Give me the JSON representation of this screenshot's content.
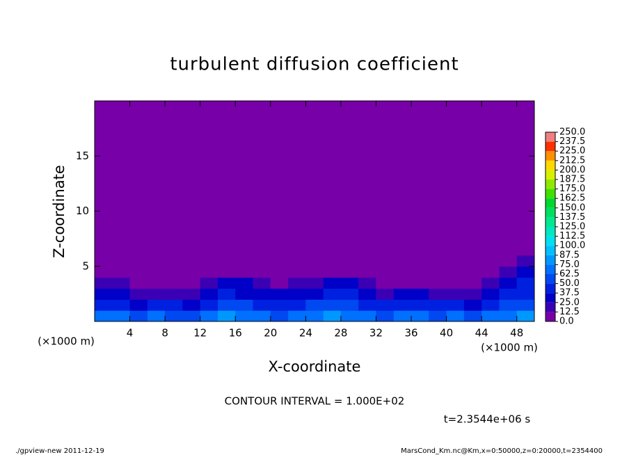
{
  "chart_data": {
    "type": "heatmap",
    "title": "turbulent diffusion coefficient",
    "x_label": "X-coordinate",
    "y_label": "Z-coordinate",
    "x_unit": "(×1000 m)",
    "y_unit": "(×1000 m)",
    "xlim": [
      0,
      50
    ],
    "ylim": [
      0,
      20
    ],
    "xticks": [
      4,
      8,
      12,
      16,
      20,
      24,
      28,
      32,
      36,
      40,
      44,
      48
    ],
    "yticks": [
      5,
      10,
      15
    ],
    "xbins": [
      0,
      2,
      4,
      6,
      8,
      10,
      12,
      14,
      16,
      18,
      20,
      22,
      24,
      26,
      28,
      30,
      32,
      34,
      36,
      38,
      40,
      42,
      44,
      46,
      48,
      50
    ],
    "ybins": [
      0,
      1,
      2,
      3,
      4,
      5,
      6,
      20
    ],
    "values": [
      [
        70,
        65,
        60,
        70,
        62,
        58,
        68,
        75,
        72,
        66,
        60,
        70,
        74,
        80,
        72,
        65,
        60,
        70,
        68,
        62,
        66,
        60,
        64,
        70,
        75
      ],
      [
        45,
        40,
        35,
        42,
        38,
        30,
        45,
        55,
        50,
        44,
        40,
        48,
        52,
        58,
        50,
        45,
        38,
        42,
        46,
        40,
        38,
        35,
        45,
        50,
        55
      ],
      [
        30,
        25,
        18,
        22,
        20,
        15,
        28,
        40,
        35,
        30,
        25,
        30,
        35,
        42,
        38,
        30,
        20,
        25,
        28,
        22,
        20,
        18,
        30,
        38,
        45
      ],
      [
        20,
        15,
        5,
        10,
        8,
        5,
        15,
        30,
        28,
        18,
        12,
        15,
        20,
        30,
        32,
        18,
        8,
        10,
        12,
        8,
        5,
        8,
        15,
        28,
        38
      ],
      [
        0,
        0,
        0,
        0,
        0,
        0,
        0,
        5,
        5,
        0,
        0,
        0,
        0,
        8,
        10,
        5,
        0,
        0,
        0,
        0,
        0,
        0,
        5,
        15,
        30
      ],
      [
        0,
        0,
        0,
        0,
        0,
        0,
        0,
        0,
        0,
        0,
        0,
        0,
        0,
        0,
        0,
        0,
        0,
        0,
        0,
        0,
        0,
        0,
        0,
        5,
        20
      ],
      [
        0,
        0,
        0,
        0,
        0,
        0,
        0,
        0,
        0,
        0,
        0,
        0,
        0,
        0,
        0,
        0,
        0,
        0,
        0,
        0,
        0,
        0,
        0,
        0,
        0
      ]
    ],
    "colorbar": {
      "levels": [
        {
          "value": 0,
          "label": "0.0"
        },
        {
          "value": 12.5,
          "label": "12.5"
        },
        {
          "value": 25,
          "label": "25.0"
        },
        {
          "value": 37.5,
          "label": "37.5"
        },
        {
          "value": 50,
          "label": "50.0"
        },
        {
          "value": 62.5,
          "label": "62.5"
        },
        {
          "value": 75,
          "label": "75.0"
        },
        {
          "value": 87.5,
          "label": "87.5"
        },
        {
          "value": 100,
          "label": "100.0"
        },
        {
          "value": 112.5,
          "label": "112.5"
        },
        {
          "value": 125,
          "label": "125.0"
        },
        {
          "value": 137.5,
          "label": "137.5"
        },
        {
          "value": 150,
          "label": "150.0"
        },
        {
          "value": 162.5,
          "label": "162.5"
        },
        {
          "value": 175,
          "label": "175.0"
        },
        {
          "value": 187.5,
          "label": "187.5"
        },
        {
          "value": 200,
          "label": "200.0"
        },
        {
          "value": 212.5,
          "label": "212.5"
        },
        {
          "value": 225,
          "label": "225.0"
        },
        {
          "value": 237.5,
          "label": "237.5"
        },
        {
          "value": 250,
          "label": "250.0"
        }
      ],
      "colors": [
        "#7800a8",
        "#3c00b4",
        "#0000c8",
        "#0020e0",
        "#0048f0",
        "#0070ff",
        "#0098ff",
        "#00c0ff",
        "#00e0f0",
        "#00e8c0",
        "#00e890",
        "#00e060",
        "#00d830",
        "#40e000",
        "#90e800",
        "#d8f000",
        "#ffd800",
        "#ff9000",
        "#ff3000",
        "#f08080"
      ]
    },
    "contour_note": "CONTOUR INTERVAL = 1.000E+02",
    "time_label": "t=2.3544e+06 s",
    "footer_left": "./gpview-new   2011-12-19",
    "footer_right": "MarsCond_Km.nc@Km,x=0:50000,z=0:20000,t=2354400"
  }
}
